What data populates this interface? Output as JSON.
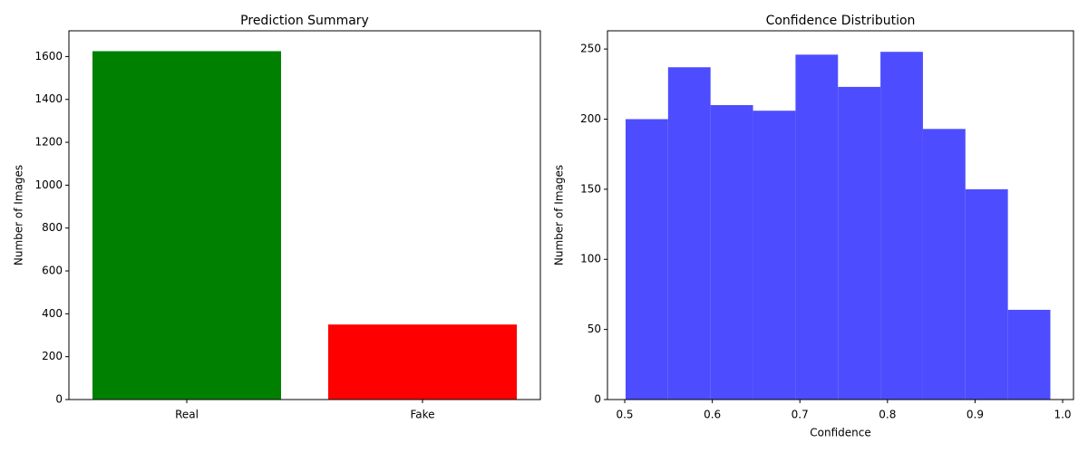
{
  "chart_data": [
    {
      "type": "bar",
      "title": "Prediction Summary",
      "ylabel": "Number of Images",
      "categories": [
        "Real",
        "Fake"
      ],
      "values": [
        1625,
        350
      ],
      "colors": [
        "#008000",
        "#ff0000"
      ],
      "ylim": [
        0,
        1720
      ],
      "yticks": [
        0,
        200,
        400,
        600,
        800,
        1000,
        1200,
        1400,
        1600
      ]
    },
    {
      "type": "histogram",
      "title": "Confidence Distribution",
      "xlabel": "Confidence",
      "ylabel": "Number of Images",
      "bins": [
        0.501,
        0.5495,
        0.598,
        0.6465,
        0.695,
        0.7435,
        0.792,
        0.8405,
        0.889,
        0.9375,
        0.986
      ],
      "values": [
        200,
        237,
        210,
        206,
        246,
        223,
        248,
        193,
        150,
        64
      ],
      "color": "#4d4dff",
      "xlim": [
        0.4803,
        1.0124
      ],
      "xticks": [
        0.5,
        0.6,
        0.7,
        0.8,
        0.9,
        {
          "value": 1.0,
          "label": "1.0"
        }
      ],
      "ylim": [
        0,
        263
      ],
      "yticks": [
        0,
        50,
        100,
        150,
        200,
        250
      ]
    }
  ]
}
